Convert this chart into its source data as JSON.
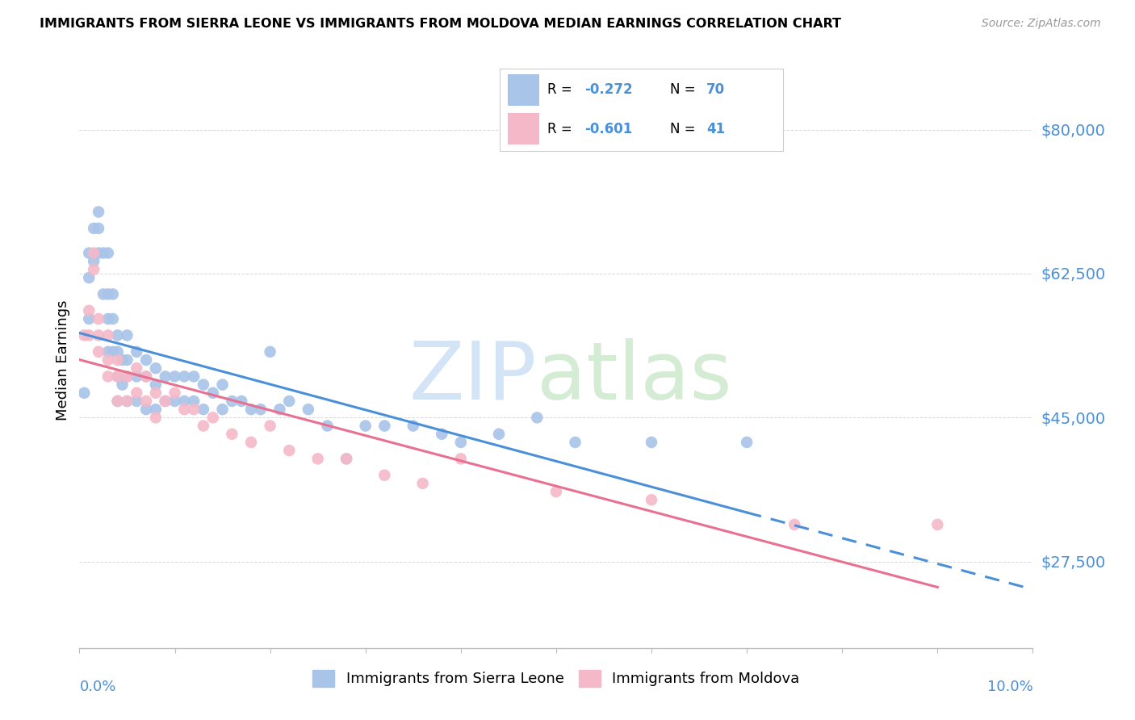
{
  "title": "IMMIGRANTS FROM SIERRA LEONE VS IMMIGRANTS FROM MOLDOVA MEDIAN EARNINGS CORRELATION CHART",
  "source": "Source: ZipAtlas.com",
  "ylabel": "Median Earnings",
  "yticks": [
    27500,
    45000,
    62500,
    80000
  ],
  "ytick_labels": [
    "$27,500",
    "$45,000",
    "$62,500",
    "$80,000"
  ],
  "xlim": [
    0.0,
    0.1
  ],
  "ylim": [
    17000,
    87000
  ],
  "color_sierra_leone": "#a8c4e8",
  "color_moldova": "#f4b8c8",
  "line_color_blue": "#4a90d9",
  "line_color_pink": "#e87090",
  "sl_R": "-0.272",
  "sl_N": "70",
  "md_R": "-0.601",
  "md_N": "41",
  "sierra_leone_x": [
    0.0005,
    0.001,
    0.001,
    0.001,
    0.0015,
    0.0015,
    0.002,
    0.002,
    0.002,
    0.0025,
    0.0025,
    0.003,
    0.003,
    0.003,
    0.003,
    0.0035,
    0.0035,
    0.0035,
    0.004,
    0.004,
    0.004,
    0.004,
    0.0045,
    0.0045,
    0.005,
    0.005,
    0.005,
    0.005,
    0.006,
    0.006,
    0.006,
    0.007,
    0.007,
    0.007,
    0.008,
    0.008,
    0.008,
    0.009,
    0.009,
    0.01,
    0.01,
    0.011,
    0.011,
    0.012,
    0.012,
    0.013,
    0.013,
    0.014,
    0.015,
    0.015,
    0.016,
    0.017,
    0.018,
    0.019,
    0.02,
    0.021,
    0.022,
    0.024,
    0.026,
    0.028,
    0.03,
    0.032,
    0.035,
    0.038,
    0.04,
    0.044,
    0.048,
    0.052,
    0.06,
    0.07
  ],
  "sierra_leone_y": [
    48000,
    65000,
    62000,
    57000,
    68000,
    64000,
    70000,
    68000,
    65000,
    65000,
    60000,
    65000,
    60000,
    57000,
    53000,
    60000,
    57000,
    53000,
    55000,
    53000,
    50000,
    47000,
    52000,
    49000,
    55000,
    52000,
    50000,
    47000,
    53000,
    50000,
    47000,
    52000,
    50000,
    46000,
    51000,
    49000,
    46000,
    50000,
    47000,
    50000,
    47000,
    50000,
    47000,
    50000,
    47000,
    49000,
    46000,
    48000,
    49000,
    46000,
    47000,
    47000,
    46000,
    46000,
    53000,
    46000,
    47000,
    46000,
    44000,
    40000,
    44000,
    44000,
    44000,
    43000,
    42000,
    43000,
    45000,
    42000,
    42000,
    42000
  ],
  "moldova_x": [
    0.0005,
    0.001,
    0.001,
    0.0015,
    0.0015,
    0.002,
    0.002,
    0.002,
    0.003,
    0.003,
    0.003,
    0.004,
    0.004,
    0.004,
    0.005,
    0.005,
    0.006,
    0.006,
    0.007,
    0.007,
    0.008,
    0.008,
    0.009,
    0.01,
    0.011,
    0.012,
    0.013,
    0.014,
    0.016,
    0.018,
    0.02,
    0.022,
    0.025,
    0.028,
    0.032,
    0.036,
    0.04,
    0.05,
    0.06,
    0.075,
    0.09
  ],
  "moldova_y": [
    55000,
    58000,
    55000,
    65000,
    63000,
    57000,
    55000,
    53000,
    55000,
    52000,
    50000,
    52000,
    50000,
    47000,
    50000,
    47000,
    51000,
    48000,
    50000,
    47000,
    48000,
    45000,
    47000,
    48000,
    46000,
    46000,
    44000,
    45000,
    43000,
    42000,
    44000,
    41000,
    40000,
    40000,
    38000,
    37000,
    40000,
    36000,
    35000,
    32000,
    32000
  ]
}
